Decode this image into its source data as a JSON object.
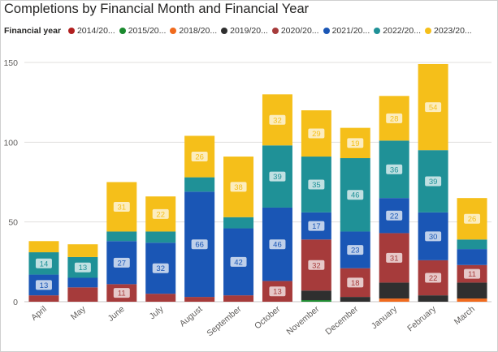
{
  "title": "Completions by Financial Month and Financial Year",
  "legend": {
    "title": "Financial year",
    "items": [
      {
        "label": "2014/20...",
        "color": "#b11f1f"
      },
      {
        "label": "2015/20...",
        "color": "#1a8a2e"
      },
      {
        "label": "2018/20...",
        "color": "#f06a1d"
      },
      {
        "label": "2019/20...",
        "color": "#2f2f2f"
      },
      {
        "label": "2020/20...",
        "color": "#a63b3b"
      },
      {
        "label": "2021/20...",
        "color": "#1a56b5"
      },
      {
        "label": "2022/20...",
        "color": "#1f9197"
      },
      {
        "label": "2023/20...",
        "color": "#f5bf1a"
      }
    ]
  },
  "chart_data": {
    "type": "bar",
    "stacked": true,
    "title": "Completions by Financial Month and Financial Year",
    "xlabel": "",
    "ylabel": "",
    "ylim": [
      0,
      150
    ],
    "yticks": [
      0,
      50,
      100,
      150
    ],
    "grid": true,
    "legend_position": "top",
    "categories": [
      "April",
      "May",
      "June",
      "July",
      "August",
      "September",
      "October",
      "November",
      "December",
      "January",
      "February",
      "March"
    ],
    "series": [
      {
        "name": "2014/20...",
        "color": "#b11f1f",
        "values": [
          0,
          0,
          0,
          0,
          0,
          0,
          0,
          0,
          0,
          0,
          0,
          0
        ]
      },
      {
        "name": "2015/20...",
        "color": "#1a8a2e",
        "values": [
          0,
          0,
          0,
          0,
          0,
          0,
          0,
          1,
          0,
          0,
          0,
          0
        ]
      },
      {
        "name": "2018/20...",
        "color": "#f06a1d",
        "values": [
          0,
          0,
          0,
          0,
          0,
          0,
          0,
          0,
          0,
          2,
          0,
          2
        ]
      },
      {
        "name": "2019/20...",
        "color": "#2f2f2f",
        "values": [
          0,
          0,
          0,
          0,
          0,
          0,
          0,
          6,
          3,
          10,
          4,
          10
        ]
      },
      {
        "name": "2020/20...",
        "color": "#a63b3b",
        "values": [
          4,
          9,
          11,
          5,
          3,
          4,
          13,
          32,
          18,
          31,
          22,
          11
        ]
      },
      {
        "name": "2021/20...",
        "color": "#1a56b5",
        "values": [
          13,
          6,
          27,
          32,
          66,
          42,
          46,
          17,
          23,
          22,
          30,
          10
        ]
      },
      {
        "name": "2022/20...",
        "color": "#1f9197",
        "values": [
          14,
          13,
          6,
          7,
          9,
          7,
          39,
          35,
          46,
          36,
          39,
          6
        ]
      },
      {
        "name": "2023/20...",
        "color": "#f5bf1a",
        "values": [
          7,
          8,
          31,
          22,
          26,
          38,
          32,
          29,
          19,
          28,
          54,
          26
        ]
      }
    ],
    "data_labels": [
      {
        "category": "April",
        "series": "2021/20...",
        "value": 13
      },
      {
        "category": "April",
        "series": "2022/20...",
        "value": 14
      },
      {
        "category": "May",
        "series": "2022/20...",
        "value": 13
      },
      {
        "category": "June",
        "series": "2020/20...",
        "value": 11
      },
      {
        "category": "June",
        "series": "2021/20...",
        "value": 27
      },
      {
        "category": "June",
        "series": "2023/20...",
        "value": 31
      },
      {
        "category": "July",
        "series": "2021/20...",
        "value": 32
      },
      {
        "category": "July",
        "series": "2023/20...",
        "value": 22
      },
      {
        "category": "August",
        "series": "2021/20...",
        "value": 66
      },
      {
        "category": "August",
        "series": "2023/20...",
        "value": 26
      },
      {
        "category": "September",
        "series": "2021/20...",
        "value": 42
      },
      {
        "category": "September",
        "series": "2023/20...",
        "value": 38
      },
      {
        "category": "October",
        "series": "2020/20...",
        "value": 13
      },
      {
        "category": "October",
        "series": "2021/20...",
        "value": 46
      },
      {
        "category": "October",
        "series": "2022/20...",
        "value": 39
      },
      {
        "category": "October",
        "series": "2023/20...",
        "value": 32
      },
      {
        "category": "November",
        "series": "2020/20...",
        "value": 32
      },
      {
        "category": "November",
        "series": "2021/20...",
        "value": 17
      },
      {
        "category": "November",
        "series": "2022/20...",
        "value": 35
      },
      {
        "category": "November",
        "series": "2023/20...",
        "value": 29
      },
      {
        "category": "December",
        "series": "2020/20...",
        "value": 18
      },
      {
        "category": "December",
        "series": "2021/20...",
        "value": 23
      },
      {
        "category": "December",
        "series": "2022/20...",
        "value": 46
      },
      {
        "category": "December",
        "series": "2023/20...",
        "value": 19
      },
      {
        "category": "January",
        "series": "2020/20...",
        "value": 31
      },
      {
        "category": "January",
        "series": "2021/20...",
        "value": 22
      },
      {
        "category": "January",
        "series": "2022/20...",
        "value": 36
      },
      {
        "category": "January",
        "series": "2023/20...",
        "value": 28
      },
      {
        "category": "February",
        "series": "2020/20...",
        "value": 22
      },
      {
        "category": "February",
        "series": "2021/20...",
        "value": 30
      },
      {
        "category": "February",
        "series": "2022/20...",
        "value": 39
      },
      {
        "category": "February",
        "series": "2023/20...",
        "value": 54
      },
      {
        "category": "March",
        "series": "2020/20...",
        "value": 11
      },
      {
        "category": "March",
        "series": "2023/20...",
        "value": 26
      }
    ]
  }
}
